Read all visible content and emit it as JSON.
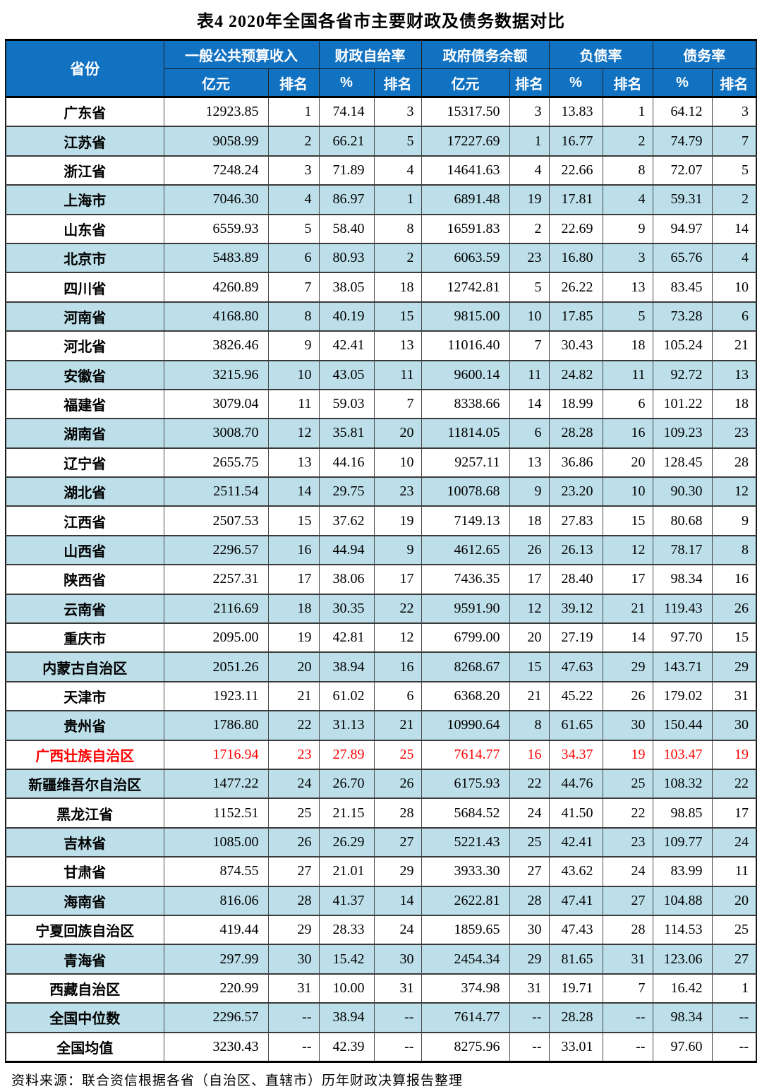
{
  "title": "表4  2020年全国各省市主要财政及债务数据对比",
  "source_note": "资料来源：联合资信根据各省（自治区、直辖市）历年财政决算报告整理",
  "colors": {
    "header_bg": "#1272C2",
    "stripe_bg": "#BDDFEA",
    "highlight_text": "#FF0000",
    "header_text": "#FFFFFF",
    "body_text": "#000000"
  },
  "table": {
    "header": {
      "province": "省份",
      "groups": [
        {
          "label": "一般公共预算收入",
          "sub": [
            "亿元",
            "排名"
          ]
        },
        {
          "label": "财政自给率",
          "sub": [
            "%",
            "排名"
          ]
        },
        {
          "label": "政府债务余额",
          "sub": [
            "亿元",
            "排名"
          ]
        },
        {
          "label": "负债率",
          "sub": [
            "%",
            "排名"
          ]
        },
        {
          "label": "债务率",
          "sub": [
            "%",
            "排名"
          ]
        }
      ]
    },
    "rows": [
      {
        "province": "广东省",
        "values": [
          "12923.85",
          "1",
          "74.14",
          "3",
          "15317.50",
          "3",
          "13.83",
          "1",
          "64.12",
          "3"
        ],
        "highlight": false
      },
      {
        "province": "江苏省",
        "values": [
          "9058.99",
          "2",
          "66.21",
          "5",
          "17227.69",
          "1",
          "16.77",
          "2",
          "74.79",
          "7"
        ],
        "highlight": false
      },
      {
        "province": "浙江省",
        "values": [
          "7248.24",
          "3",
          "71.89",
          "4",
          "14641.63",
          "4",
          "22.66",
          "8",
          "72.07",
          "5"
        ],
        "highlight": false
      },
      {
        "province": "上海市",
        "values": [
          "7046.30",
          "4",
          "86.97",
          "1",
          "6891.48",
          "19",
          "17.81",
          "4",
          "59.31",
          "2"
        ],
        "highlight": false
      },
      {
        "province": "山东省",
        "values": [
          "6559.93",
          "5",
          "58.40",
          "8",
          "16591.83",
          "2",
          "22.69",
          "9",
          "94.97",
          "14"
        ],
        "highlight": false
      },
      {
        "province": "北京市",
        "values": [
          "5483.89",
          "6",
          "80.93",
          "2",
          "6063.59",
          "23",
          "16.80",
          "3",
          "65.76",
          "4"
        ],
        "highlight": false
      },
      {
        "province": "四川省",
        "values": [
          "4260.89",
          "7",
          "38.05",
          "18",
          "12742.81",
          "5",
          "26.22",
          "13",
          "83.45",
          "10"
        ],
        "highlight": false
      },
      {
        "province": "河南省",
        "values": [
          "4168.80",
          "8",
          "40.19",
          "15",
          "9815.00",
          "10",
          "17.85",
          "5",
          "73.28",
          "6"
        ],
        "highlight": false
      },
      {
        "province": "河北省",
        "values": [
          "3826.46",
          "9",
          "42.41",
          "13",
          "11016.40",
          "7",
          "30.43",
          "18",
          "105.24",
          "21"
        ],
        "highlight": false
      },
      {
        "province": "安徽省",
        "values": [
          "3215.96",
          "10",
          "43.05",
          "11",
          "9600.14",
          "11",
          "24.82",
          "11",
          "92.72",
          "13"
        ],
        "highlight": false
      },
      {
        "province": "福建省",
        "values": [
          "3079.04",
          "11",
          "59.03",
          "7",
          "8338.66",
          "14",
          "18.99",
          "6",
          "101.22",
          "18"
        ],
        "highlight": false
      },
      {
        "province": "湖南省",
        "values": [
          "3008.70",
          "12",
          "35.81",
          "20",
          "11814.05",
          "6",
          "28.28",
          "16",
          "109.23",
          "23"
        ],
        "highlight": false
      },
      {
        "province": "辽宁省",
        "values": [
          "2655.75",
          "13",
          "44.16",
          "10",
          "9257.11",
          "13",
          "36.86",
          "20",
          "128.45",
          "28"
        ],
        "highlight": false
      },
      {
        "province": "湖北省",
        "values": [
          "2511.54",
          "14",
          "29.75",
          "23",
          "10078.68",
          "9",
          "23.20",
          "10",
          "90.30",
          "12"
        ],
        "highlight": false
      },
      {
        "province": "江西省",
        "values": [
          "2507.53",
          "15",
          "37.62",
          "19",
          "7149.13",
          "18",
          "27.83",
          "15",
          "80.68",
          "9"
        ],
        "highlight": false
      },
      {
        "province": "山西省",
        "values": [
          "2296.57",
          "16",
          "44.94",
          "9",
          "4612.65",
          "26",
          "26.13",
          "12",
          "78.17",
          "8"
        ],
        "highlight": false
      },
      {
        "province": "陕西省",
        "values": [
          "2257.31",
          "17",
          "38.06",
          "17",
          "7436.35",
          "17",
          "28.40",
          "17",
          "98.34",
          "16"
        ],
        "highlight": false
      },
      {
        "province": "云南省",
        "values": [
          "2116.69",
          "18",
          "30.35",
          "22",
          "9591.90",
          "12",
          "39.12",
          "21",
          "119.43",
          "26"
        ],
        "highlight": false
      },
      {
        "province": "重庆市",
        "values": [
          "2095.00",
          "19",
          "42.81",
          "12",
          "6799.00",
          "20",
          "27.19",
          "14",
          "97.70",
          "15"
        ],
        "highlight": false
      },
      {
        "province": "内蒙古自治区",
        "values": [
          "2051.26",
          "20",
          "38.94",
          "16",
          "8268.67",
          "15",
          "47.63",
          "29",
          "143.71",
          "29"
        ],
        "highlight": false
      },
      {
        "province": "天津市",
        "values": [
          "1923.11",
          "21",
          "61.02",
          "6",
          "6368.20",
          "21",
          "45.22",
          "26",
          "179.02",
          "31"
        ],
        "highlight": false
      },
      {
        "province": "贵州省",
        "values": [
          "1786.80",
          "22",
          "31.13",
          "21",
          "10990.64",
          "8",
          "61.65",
          "30",
          "150.44",
          "30"
        ],
        "highlight": false
      },
      {
        "province": "广西壮族自治区",
        "values": [
          "1716.94",
          "23",
          "27.89",
          "25",
          "7614.77",
          "16",
          "34.37",
          "19",
          "103.47",
          "19"
        ],
        "highlight": true
      },
      {
        "province": "新疆维吾尔自治区",
        "values": [
          "1477.22",
          "24",
          "26.70",
          "26",
          "6175.93",
          "22",
          "44.76",
          "25",
          "108.32",
          "22"
        ],
        "highlight": false
      },
      {
        "province": "黑龙江省",
        "values": [
          "1152.51",
          "25",
          "21.15",
          "28",
          "5684.52",
          "24",
          "41.50",
          "22",
          "98.85",
          "17"
        ],
        "highlight": false
      },
      {
        "province": "吉林省",
        "values": [
          "1085.00",
          "26",
          "26.29",
          "27",
          "5221.43",
          "25",
          "42.41",
          "23",
          "109.77",
          "24"
        ],
        "highlight": false
      },
      {
        "province": "甘肃省",
        "values": [
          "874.55",
          "27",
          "21.01",
          "29",
          "3933.30",
          "27",
          "43.62",
          "24",
          "83.99",
          "11"
        ],
        "highlight": false
      },
      {
        "province": "海南省",
        "values": [
          "816.06",
          "28",
          "41.37",
          "14",
          "2622.81",
          "28",
          "47.41",
          "27",
          "104.88",
          "20"
        ],
        "highlight": false
      },
      {
        "province": "宁夏回族自治区",
        "values": [
          "419.44",
          "29",
          "28.33",
          "24",
          "1859.65",
          "30",
          "47.43",
          "28",
          "114.53",
          "25"
        ],
        "highlight": false
      },
      {
        "province": "青海省",
        "values": [
          "297.99",
          "30",
          "15.42",
          "30",
          "2454.34",
          "29",
          "81.65",
          "31",
          "123.06",
          "27"
        ],
        "highlight": false
      },
      {
        "province": "西藏自治区",
        "values": [
          "220.99",
          "31",
          "10.00",
          "31",
          "374.98",
          "31",
          "19.71",
          "7",
          "16.42",
          "1"
        ],
        "highlight": false
      },
      {
        "province": "全国中位数",
        "values": [
          "2296.57",
          "--",
          "38.94",
          "--",
          "7614.77",
          "--",
          "28.28",
          "--",
          "98.34",
          "--"
        ],
        "highlight": false
      },
      {
        "province": "全国均值",
        "values": [
          "3230.43",
          "--",
          "42.39",
          "--",
          "8275.96",
          "--",
          "33.01",
          "--",
          "97.60",
          "--"
        ],
        "highlight": false
      }
    ]
  }
}
